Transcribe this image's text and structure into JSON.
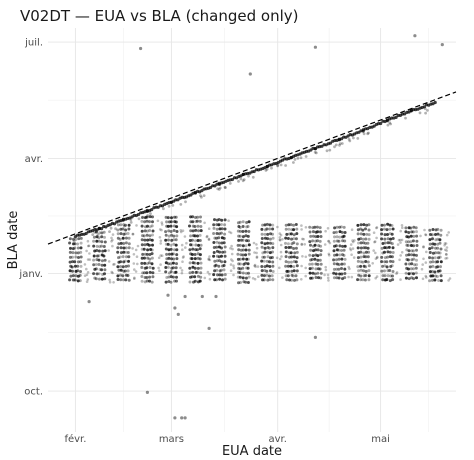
{
  "chart_data": {
    "type": "scatter",
    "title": "V02DT — EUA vs BLA (changed only)",
    "xlabel": "EUA date",
    "ylabel": "BLA date",
    "x_tick_labels": [
      "févr.",
      "mars",
      "avr.",
      "mai"
    ],
    "y_tick_labels": [
      "oct.",
      "janv.",
      "avr.",
      "juil."
    ],
    "x_ticks": [
      "2021-02-01",
      "2021-03-01",
      "2021-04-01",
      "2021-05-01"
    ],
    "y_ticks": [
      "2020-10-01",
      "2021-01-01",
      "2021-04-01",
      "2021-07-01"
    ],
    "xlim": [
      "2021-01-24",
      "2021-05-23"
    ],
    "ylim": [
      "2020-08-30",
      "2021-07-12"
    ],
    "grid": true,
    "reference_line": {
      "type": "identity",
      "style": "dashed",
      "color": "#000000"
    },
    "series": [
      {
        "description_key": "diagonal_band",
        "points": [
          [
            "2021-02-01",
            "2021-01-30"
          ],
          [
            "2021-02-08",
            "2021-02-05"
          ],
          [
            "2021-02-15",
            "2021-02-12"
          ],
          [
            "2021-02-22",
            "2021-02-19"
          ],
          [
            "2021-03-01",
            "2021-02-26"
          ],
          [
            "2021-03-08",
            "2021-03-05"
          ],
          [
            "2021-03-15",
            "2021-03-12"
          ],
          [
            "2021-03-22",
            "2021-03-19"
          ],
          [
            "2021-03-29",
            "2021-03-26"
          ],
          [
            "2021-04-05",
            "2021-04-02"
          ],
          [
            "2021-04-12",
            "2021-04-09"
          ],
          [
            "2021-04-19",
            "2021-04-16"
          ],
          [
            "2021-04-26",
            "2021-04-23"
          ],
          [
            "2021-05-03",
            "2021-05-01"
          ],
          [
            "2021-05-10",
            "2021-05-08"
          ],
          [
            "2021-05-17",
            "2021-05-15"
          ]
        ]
      },
      {
        "description_key": "weekly_columns",
        "columns": [
          {
            "x": "2021-02-01",
            "y_min": "2020-12-25",
            "y_max": "2021-01-28"
          },
          {
            "x": "2021-02-08",
            "y_min": "2020-12-25",
            "y_max": "2021-02-02"
          },
          {
            "x": "2021-02-15",
            "y_min": "2020-12-25",
            "y_max": "2021-02-08"
          },
          {
            "x": "2021-02-22",
            "y_min": "2020-12-25",
            "y_max": "2021-02-14"
          },
          {
            "x": "2021-03-01",
            "y_min": "2020-12-25",
            "y_max": "2021-02-14"
          },
          {
            "x": "2021-03-08",
            "y_min": "2020-12-25",
            "y_max": "2021-02-14"
          },
          {
            "x": "2021-03-15",
            "y_min": "2020-12-25",
            "y_max": "2021-02-12"
          },
          {
            "x": "2021-03-22",
            "y_min": "2020-12-25",
            "y_max": "2021-02-10"
          },
          {
            "x": "2021-03-29",
            "y_min": "2020-12-25",
            "y_max": "2021-02-08"
          },
          {
            "x": "2021-04-05",
            "y_min": "2020-12-25",
            "y_max": "2021-02-08"
          },
          {
            "x": "2021-04-12",
            "y_min": "2020-12-25",
            "y_max": "2021-02-06"
          },
          {
            "x": "2021-04-19",
            "y_min": "2020-12-25",
            "y_max": "2021-02-06"
          },
          {
            "x": "2021-04-26",
            "y_min": "2020-12-25",
            "y_max": "2021-02-08"
          },
          {
            "x": "2021-05-03",
            "y_min": "2020-12-25",
            "y_max": "2021-02-08"
          },
          {
            "x": "2021-05-10",
            "y_min": "2020-12-25",
            "y_max": "2021-02-06"
          },
          {
            "x": "2021-05-17",
            "y_min": "2020-12-25",
            "y_max": "2021-02-04"
          }
        ]
      },
      {
        "description_key": "outliers",
        "points": [
          [
            "2021-02-20",
            "2021-06-26"
          ],
          [
            "2021-04-12",
            "2021-06-27"
          ],
          [
            "2021-03-24",
            "2021-06-06"
          ],
          [
            "2021-05-11",
            "2021-07-06"
          ],
          [
            "2021-05-19",
            "2021-06-29"
          ],
          [
            "2021-02-28",
            "2020-12-15"
          ],
          [
            "2021-03-05",
            "2020-12-14"
          ],
          [
            "2021-03-10",
            "2020-12-14"
          ],
          [
            "2021-03-14",
            "2020-12-14"
          ],
          [
            "2021-03-02",
            "2020-12-05"
          ],
          [
            "2021-03-03",
            "2020-11-30"
          ],
          [
            "2021-03-12",
            "2020-11-19"
          ],
          [
            "2021-04-12",
            "2020-11-12"
          ],
          [
            "2021-02-05",
            "2020-12-10"
          ],
          [
            "2021-02-22",
            "2020-09-30"
          ],
          [
            "2021-03-02",
            "2020-09-10"
          ],
          [
            "2021-03-04",
            "2020-09-10"
          ],
          [
            "2021-03-05",
            "2020-09-10"
          ]
        ]
      }
    ]
  }
}
